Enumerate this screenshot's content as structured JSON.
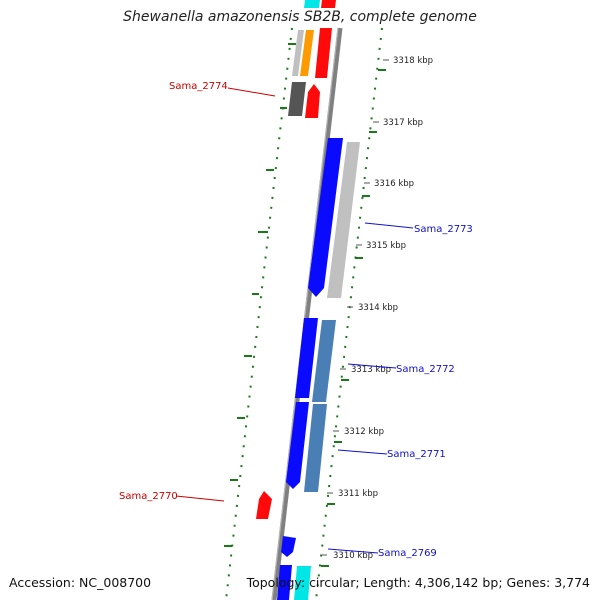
{
  "title": "Shewanella amazonensis SB2B, complete genome",
  "footer": {
    "accession_label": "Accession:",
    "accession": "NC_008700",
    "topology_label": "Topology:",
    "topology": "circular",
    "length_label": "Length:",
    "length": "4,306,142 bp",
    "genes_label": "Genes:",
    "genes": "3,774"
  },
  "colors": {
    "backbone": "#808080",
    "gc_skew": "#1a7a1a",
    "cds_forward": "#0a0aff",
    "cds_reverse": "#ff0a0a",
    "rna_cyan": "#00e5e5",
    "orange": "#ff9900",
    "steelblue": "#4a7fb5",
    "light_gray": "#c0c0c0",
    "dark_gray": "#555555",
    "label_red": "#cc0000",
    "label_blue": "#1010cc"
  },
  "ticks": [
    "3318 kbp",
    "3317 kbp",
    "3316 kbp",
    "3315 kbp",
    "3314 kbp",
    "3313 kbp",
    "3312 kbp",
    "3311 kbp",
    "3310 kbp"
  ],
  "gene_labels": [
    "Sama_2774",
    "Sama_2773",
    "Sama_2772",
    "Sama_2771",
    "Sama_2770",
    "Sama_2769"
  ]
}
